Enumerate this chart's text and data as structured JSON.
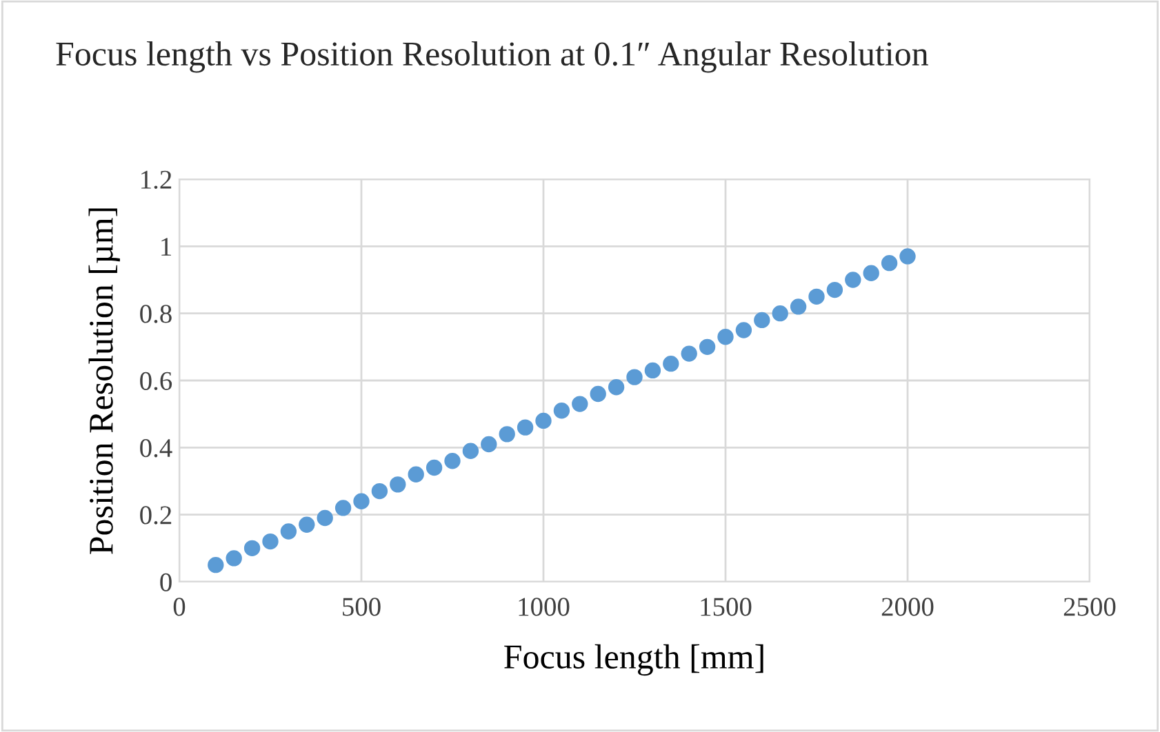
{
  "chart_data": {
    "type": "scatter",
    "title": "Focus length vs Position Resolution at 0.1″ Angular Resolution",
    "xlabel": "Focus length [mm]",
    "ylabel": "Position Resolution [µm]",
    "series": [
      {
        "color": "#5b9bd5",
        "x": [
          100,
          150,
          200,
          250,
          300,
          350,
          400,
          450,
          500,
          550,
          600,
          650,
          700,
          750,
          800,
          850,
          900,
          950,
          1000,
          1050,
          1100,
          1150,
          1200,
          1250,
          1300,
          1350,
          1400,
          1450,
          1500,
          1550,
          1600,
          1650,
          1700,
          1750,
          1800,
          1850,
          1900,
          1950,
          2000
        ],
        "values": [
          0.05,
          0.07,
          0.1,
          0.12,
          0.15,
          0.17,
          0.19,
          0.22,
          0.24,
          0.27,
          0.29,
          0.32,
          0.34,
          0.36,
          0.39,
          0.41,
          0.44,
          0.46,
          0.48,
          0.51,
          0.53,
          0.56,
          0.58,
          0.61,
          0.63,
          0.65,
          0.68,
          0.7,
          0.73,
          0.75,
          0.78,
          0.8,
          0.82,
          0.85,
          0.87,
          0.9,
          0.92,
          0.95,
          0.97
        ]
      }
    ],
    "xlim": [
      0,
      2500
    ],
    "xticks": [
      0,
      500,
      1000,
      1500,
      2000,
      2500
    ],
    "ylim": [
      0,
      1.2
    ],
    "yticks": [
      0,
      {
        "value": 0.2,
        "label": "0.2"
      },
      {
        "value": 0.4,
        "label": "0.4"
      },
      {
        "value": 0.6,
        "label": "0.6"
      },
      {
        "value": 0.8,
        "label": "0.8"
      },
      1,
      {
        "value": 1.2,
        "label": "1.2"
      }
    ],
    "grid": true,
    "marker": "circle"
  }
}
